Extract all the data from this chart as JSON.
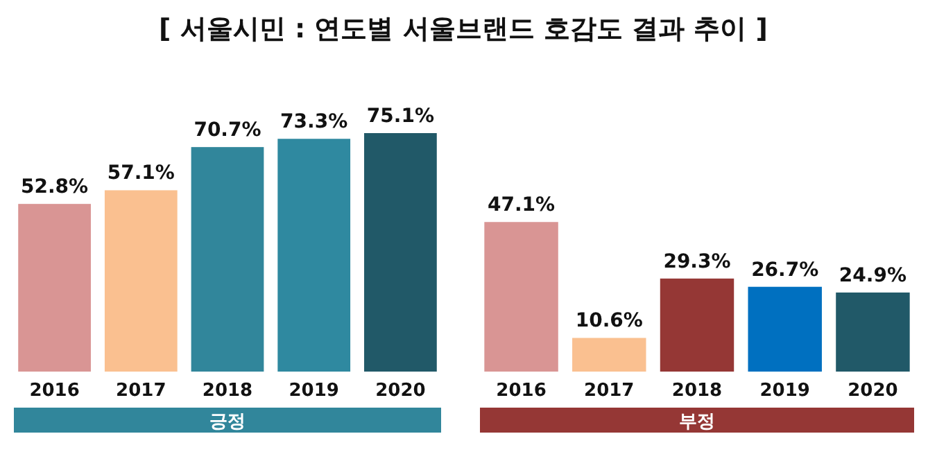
{
  "chart_data": [
    {
      "type": "bar",
      "title": "[ 서울시민 : 연도별 서울브랜드 호감도 결과 추이 ]",
      "xlabel": "긍정",
      "categories": [
        "2016",
        "2017",
        "2018",
        "2019",
        "2020"
      ],
      "values": [
        52.8,
        57.1,
        70.7,
        73.3,
        75.1
      ],
      "colors": [
        "#d99594",
        "#fac090",
        "#31869b",
        "#2f89a0",
        "#215968"
      ],
      "tick_labels": "x",
      "data_labels": true,
      "value_labels": [
        "52.8%",
        "57.1%",
        "70.7%",
        "73.3%",
        "75.1%"
      ]
    },
    {
      "type": "bar",
      "xlabel": "부정",
      "categories": [
        "2016",
        "2017",
        "2018",
        "2019",
        "2020"
      ],
      "values": [
        47.1,
        10.6,
        29.3,
        26.7,
        24.9
      ],
      "colors": [
        "#d99594",
        "#fac090",
        "#953735",
        "#0070c0",
        "#215968"
      ],
      "tick_labels": "x",
      "data_labels": true,
      "value_labels": [
        "47.1%",
        "10.6%",
        "29.3%",
        "26.7%",
        "24.9%"
      ]
    }
  ]
}
